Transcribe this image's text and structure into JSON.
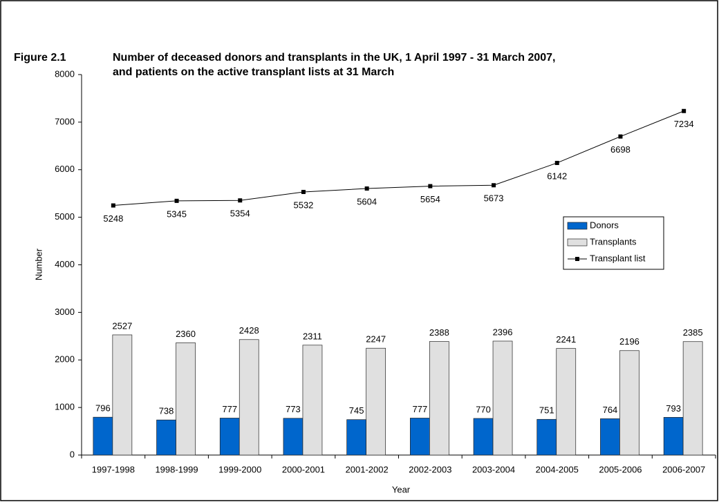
{
  "chart_data": {
    "type": "bar",
    "figure_label": "Figure 2.1",
    "title_lines": [
      "Number of deceased donors and transplants in the UK, 1 April 1997 - 31 March 2007,",
      "and patients on the active transplant lists at 31 March"
    ],
    "x_label": "Year",
    "y_label": "Number",
    "categories": [
      "1997-1998",
      "1998-1999",
      "1999-2000",
      "2000-2001",
      "2001-2002",
      "2002-2003",
      "2003-2004",
      "2004-2005",
      "2005-2006",
      "2006-2007"
    ],
    "series": [
      {
        "name": "Donors",
        "type": "bar",
        "color": "#0066cc",
        "values": [
          796,
          738,
          777,
          773,
          745,
          777,
          770,
          751,
          764,
          793
        ]
      },
      {
        "name": "Transplants",
        "type": "bar",
        "color": "#e0e0e0",
        "values": [
          2527,
          2360,
          2428,
          2311,
          2247,
          2388,
          2396,
          2241,
          2196,
          2385
        ]
      },
      {
        "name": "Transplant list",
        "type": "line",
        "color": "#000000",
        "values": [
          5248,
          5345,
          5354,
          5532,
          5604,
          5654,
          5673,
          6142,
          6698,
          7234
        ]
      }
    ],
    "ylim": [
      0,
      8000
    ],
    "yticks": [
      0,
      1000,
      2000,
      3000,
      4000,
      5000,
      6000,
      7000,
      8000
    ],
    "legend": "right"
  }
}
